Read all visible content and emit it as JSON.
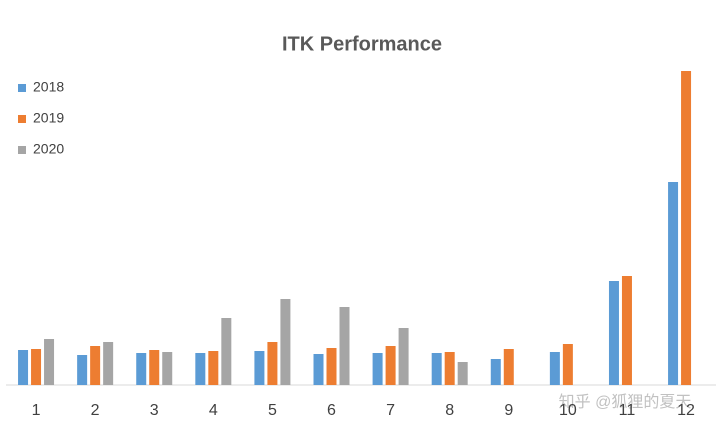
{
  "chart_data": {
    "type": "bar",
    "title": "ITK Performance",
    "categories": [
      "1",
      "2",
      "3",
      "4",
      "5",
      "6",
      "7",
      "8",
      "9",
      "10",
      "11",
      "12"
    ],
    "series": [
      {
        "name": "2018",
        "color": "#5b9bd5",
        "values": [
          35,
          30,
          32,
          32,
          34,
          31,
          32,
          32,
          26,
          33,
          104,
          203
        ]
      },
      {
        "name": "2019",
        "color": "#ed7d31",
        "values": [
          36,
          39,
          35,
          34,
          43,
          37,
          39,
          33,
          36,
          41,
          109,
          314
        ]
      },
      {
        "name": "2020",
        "color": "#a5a5a5",
        "values": [
          46,
          43,
          33,
          67,
          86,
          78,
          57,
          23,
          null,
          null,
          null,
          null
        ]
      }
    ],
    "ylim": [
      0,
      314
    ],
    "legend": "left",
    "watermark": "知乎 @狐狸的夏天"
  }
}
